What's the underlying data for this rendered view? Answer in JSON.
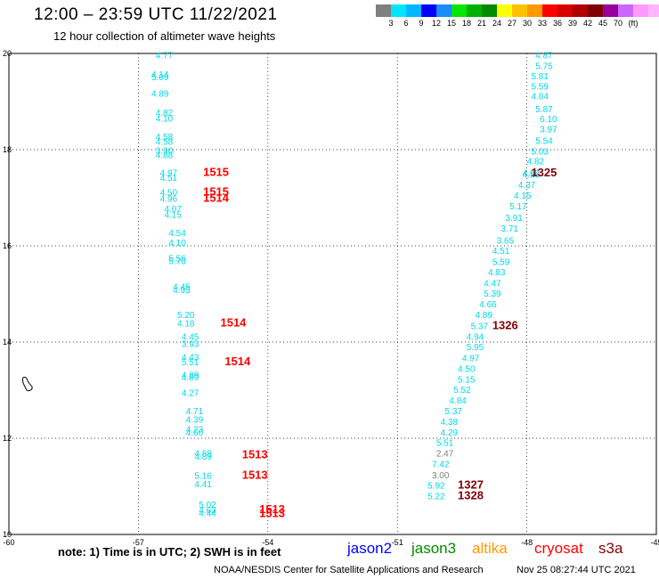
{
  "header": {
    "title": "12:00 – 23:59 UTC 11/22/2021",
    "subtitle": "12 hour collection of altimeter wave heights"
  },
  "colorbar": {
    "colors": [
      "#808080",
      "#00e5ff",
      "#00b7ff",
      "#0000ff",
      "#1a8cff",
      "#00e600",
      "#00b000",
      "#008a00",
      "#ffff00",
      "#ffc000",
      "#ff9900",
      "#ff0000",
      "#d80000",
      "#b00000",
      "#800000",
      "#990099",
      "#cc66ff",
      "#ff99ff",
      "#ffb6ff",
      "#000000"
    ],
    "labels": [
      "3",
      "6",
      "9",
      "12",
      "15",
      "18",
      "21",
      "24",
      "27",
      "30",
      "33",
      "36",
      "39",
      "42",
      "45",
      "70",
      "(ft)"
    ]
  },
  "map": {
    "x_ticks": [
      "-60",
      "-57",
      "-54",
      "-51",
      "-48",
      "-45"
    ],
    "y_ticks": [
      "20",
      "18",
      "16",
      "14",
      "12",
      "10"
    ],
    "left_track": [
      {
        "t": "4.77",
        "lon": -56.6,
        "lat": 19.9
      },
      {
        "t": "4.14",
        "lon": -56.7,
        "lat": 19.5
      },
      {
        "t": "5.09",
        "lon": -56.7,
        "lat": 19.44
      },
      {
        "t": "4.89",
        "lon": -56.7,
        "lat": 19.1
      },
      {
        "t": "4.82",
        "lon": -56.6,
        "lat": 18.7
      },
      {
        "t": "4.10",
        "lon": -56.6,
        "lat": 18.58
      },
      {
        "t": "4.58",
        "lon": -56.6,
        "lat": 18.2
      },
      {
        "t": "4.58",
        "lon": -56.6,
        "lat": 18.1
      },
      {
        "t": "3.90",
        "lon": -56.6,
        "lat": 17.92
      },
      {
        "t": "4.88",
        "lon": -56.6,
        "lat": 17.82
      },
      {
        "t": "4.97",
        "lon": -56.5,
        "lat": 17.45
      },
      {
        "t": "4.51",
        "lon": -56.5,
        "lat": 17.35
      },
      {
        "t": "4.50",
        "lon": -56.5,
        "lat": 17.05
      },
      {
        "t": "4.96",
        "lon": -56.5,
        "lat": 16.92
      },
      {
        "t": "4.07",
        "lon": -56.4,
        "lat": 16.7
      },
      {
        "t": "4.15",
        "lon": -56.4,
        "lat": 16.58
      },
      {
        "t": "4.54",
        "lon": -56.3,
        "lat": 16.2
      },
      {
        "t": "4.10",
        "lon": -56.3,
        "lat": 16.0
      },
      {
        "t": "5.56",
        "lon": -56.3,
        "lat": 15.68
      },
      {
        "t": "5.70",
        "lon": -56.3,
        "lat": 15.62
      },
      {
        "t": "4.45",
        "lon": -56.2,
        "lat": 15.08
      },
      {
        "t": "4.93",
        "lon": -56.2,
        "lat": 15.02
      },
      {
        "t": "5.20",
        "lon": -56.1,
        "lat": 14.5
      },
      {
        "t": "4.18",
        "lon": -56.1,
        "lat": 14.32
      },
      {
        "t": "4.45",
        "lon": -56.0,
        "lat": 14.05
      },
      {
        "t": "3.93",
        "lon": -56.0,
        "lat": 13.9
      },
      {
        "t": "4.43",
        "lon": -56.0,
        "lat": 13.62
      },
      {
        "t": "5.51",
        "lon": -56.0,
        "lat": 13.52
      },
      {
        "t": "4.89",
        "lon": -56.0,
        "lat": 13.25
      },
      {
        "t": "4.89",
        "lon": -56.0,
        "lat": 13.2
      },
      {
        "t": "4.27",
        "lon": -56.0,
        "lat": 12.88
      },
      {
        "t": "4.71",
        "lon": -55.9,
        "lat": 12.5
      },
      {
        "t": "4.39",
        "lon": -55.9,
        "lat": 12.32
      },
      {
        "t": "4.23",
        "lon": -55.9,
        "lat": 12.12
      },
      {
        "t": "4.60",
        "lon": -55.9,
        "lat": 12.06
      },
      {
        "t": "4.88",
        "lon": -55.7,
        "lat": 11.62
      },
      {
        "t": "4.89",
        "lon": -55.7,
        "lat": 11.56
      },
      {
        "t": "5.16",
        "lon": -55.7,
        "lat": 11.16
      },
      {
        "t": "4.41",
        "lon": -55.7,
        "lat": 10.98
      },
      {
        "t": "5.02",
        "lon": -55.6,
        "lat": 10.56
      },
      {
        "t": "4.63",
        "lon": -55.6,
        "lat": 10.44
      },
      {
        "t": "4.44",
        "lon": -55.6,
        "lat": 10.38
      }
    ],
    "right_track": [
      {
        "t": "4.87",
        "lon": -47.8,
        "lat": 19.9
      },
      {
        "t": "5.75",
        "lon": -47.8,
        "lat": 19.68
      },
      {
        "t": "5.81",
        "lon": -47.9,
        "lat": 19.46
      },
      {
        "t": "5.59",
        "lon": -47.9,
        "lat": 19.25
      },
      {
        "t": "4.84",
        "lon": -47.9,
        "lat": 19.05
      },
      {
        "t": "5.87",
        "lon": -47.8,
        "lat": 18.78
      },
      {
        "t": "6.10",
        "lon": -47.7,
        "lat": 18.57
      },
      {
        "t": "3.97",
        "lon": -47.7,
        "lat": 18.36
      },
      {
        "t": "5.54",
        "lon": -47.8,
        "lat": 18.12
      },
      {
        "t": "5.03",
        "lon": -47.9,
        "lat": 17.9
      },
      {
        "t": "4.82",
        "lon": -48.0,
        "lat": 17.69
      },
      {
        "t": "4.92",
        "lon": -48.1,
        "lat": 17.45
      },
      {
        "t": "4.66",
        "lon": -48.1,
        "lat": 17.42
      },
      {
        "t": "4.37",
        "lon": -48.2,
        "lat": 17.2
      },
      {
        "t": "4.15",
        "lon": -48.3,
        "lat": 16.98
      },
      {
        "t": "5.17",
        "lon": -48.4,
        "lat": 16.76
      },
      {
        "t": "3.91",
        "lon": -48.5,
        "lat": 16.52
      },
      {
        "t": "3.71",
        "lon": -48.6,
        "lat": 16.3
      },
      {
        "t": "3.65",
        "lon": -48.7,
        "lat": 16.05
      },
      {
        "t": "4.51",
        "lon": -48.8,
        "lat": 15.83
      },
      {
        "t": "5.59",
        "lon": -48.8,
        "lat": 15.6
      },
      {
        "t": "4.83",
        "lon": -48.9,
        "lat": 15.39
      },
      {
        "t": "4.47",
        "lon": -49.0,
        "lat": 15.16
      },
      {
        "t": "5.39",
        "lon": -49.0,
        "lat": 14.94
      },
      {
        "t": "4.66",
        "lon": -49.1,
        "lat": 14.72
      },
      {
        "t": "4.89",
        "lon": -49.2,
        "lat": 14.5
      },
      {
        "t": "5.37",
        "lon": -49.3,
        "lat": 14.27
      },
      {
        "t": "4.94",
        "lon": -49.4,
        "lat": 14.05
      },
      {
        "t": "5.95",
        "lon": -49.4,
        "lat": 13.83
      },
      {
        "t": "4.97",
        "lon": -49.5,
        "lat": 13.6
      },
      {
        "t": "4.50",
        "lon": -49.6,
        "lat": 13.38
      },
      {
        "t": "5.15",
        "lon": -49.6,
        "lat": 13.16
      },
      {
        "t": "5.52",
        "lon": -49.7,
        "lat": 12.94
      },
      {
        "t": "4.84",
        "lon": -49.8,
        "lat": 12.72
      },
      {
        "t": "5.37",
        "lon": -49.9,
        "lat": 12.5
      },
      {
        "t": "4.38",
        "lon": -50.0,
        "lat": 12.28
      },
      {
        "t": "4.29",
        "lon": -50.0,
        "lat": 12.06
      },
      {
        "t": "5.51",
        "lon": -50.1,
        "lat": 11.84
      },
      {
        "t": "2.47",
        "lon": -50.1,
        "lat": 11.62,
        "gray": true
      },
      {
        "t": "7.42",
        "lon": -50.2,
        "lat": 11.4
      },
      {
        "t": "3.00",
        "lon": -50.2,
        "lat": 11.17,
        "gray": true
      },
      {
        "t": "5.92",
        "lon": -50.3,
        "lat": 10.95
      },
      {
        "t": "5.22",
        "lon": -50.3,
        "lat": 10.73
      }
    ],
    "time_labels": [
      {
        "t": "1515",
        "lon": -55.5,
        "lat": 17.45,
        "color": "#ff0000"
      },
      {
        "t": "1515",
        "lon": -55.5,
        "lat": 17.05,
        "color": "#ff0000"
      },
      {
        "t": "1514",
        "lon": -55.5,
        "lat": 16.92,
        "color": "#ff0000"
      },
      {
        "t": "1514",
        "lon": -55.1,
        "lat": 14.32,
        "color": "#ff0000"
      },
      {
        "t": "1514",
        "lon": -55.0,
        "lat": 13.52,
        "color": "#ff0000"
      },
      {
        "t": "1513",
        "lon": -54.6,
        "lat": 11.58,
        "color": "#ff0000"
      },
      {
        "t": "1513",
        "lon": -54.6,
        "lat": 11.16,
        "color": "#ff0000"
      },
      {
        "t": "1513",
        "lon": -54.2,
        "lat": 10.44,
        "color": "#ff0000"
      },
      {
        "t": "1513",
        "lon": -54.2,
        "lat": 10.36,
        "color": "#ff0000"
      },
      {
        "t": "1325",
        "lon": -47.9,
        "lat": 17.44,
        "color": "#800000"
      },
      {
        "t": "1326",
        "lon": -48.8,
        "lat": 14.27,
        "color": "#800000"
      },
      {
        "t": "1327",
        "lon": -49.6,
        "lat": 10.95,
        "color": "#800000"
      },
      {
        "t": "1328",
        "lon": -49.6,
        "lat": 10.73,
        "color": "#800000"
      }
    ]
  },
  "footer": {
    "note": "note:  1) Time is in UTC; 2) SWH is in feet",
    "satellites": [
      {
        "name": "jason2",
        "color": "#0000ff"
      },
      {
        "name": "jason3",
        "color": "#008a00"
      },
      {
        "name": "altika",
        "color": "#ff9900"
      },
      {
        "name": "cryosat",
        "color": "#ff0000"
      },
      {
        "name": "s3a",
        "color": "#800000"
      }
    ],
    "credit": "NOAA/NESDIS Center for Satellite Applications and Research",
    "timestamp": "Nov 25 08:27:44 UTC 2021"
  }
}
